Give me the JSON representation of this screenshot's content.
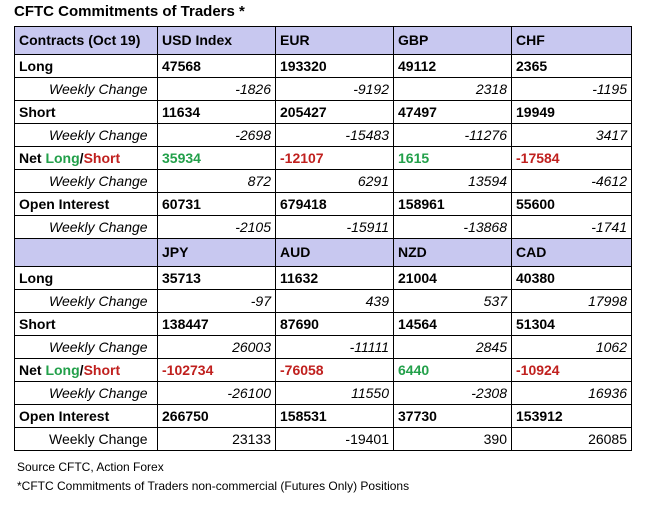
{
  "title": "CFTC Commitments of Traders *",
  "colors": {
    "header_bg": "#c8c8f0",
    "positive": "#22a04a",
    "negative": "#c0201e"
  },
  "labels": {
    "long": "Long",
    "short": "Short",
    "weekly": "Weekly Change",
    "net": "Net ",
    "net_long": "Long",
    "slash": "/",
    "net_short": "Short",
    "oi": "Open Interest"
  },
  "block1": {
    "header": [
      "Contracts (Oct 19)",
      "USD Index",
      "EUR",
      "GBP",
      "CHF"
    ],
    "long": [
      "47568",
      "193320",
      "49112",
      "2365"
    ],
    "long_chg": [
      "-1826",
      "-9192",
      "2318",
      "-1195"
    ],
    "short": [
      "11634",
      "205427",
      "47497",
      "19949"
    ],
    "short_chg": [
      "-2698",
      "-15483",
      "-11276",
      "3417"
    ],
    "net": [
      "35934",
      "-12107",
      "1615",
      "-17584"
    ],
    "net_chg": [
      "872",
      "6291",
      "13594",
      "-4612"
    ],
    "oi": [
      "60731",
      "679418",
      "158961",
      "55600"
    ],
    "oi_chg": [
      "-2105",
      "-15911",
      "-13868",
      "-1741"
    ]
  },
  "block2": {
    "header": [
      "",
      "JPY",
      "AUD",
      "NZD",
      "CAD"
    ],
    "long": [
      "35713",
      "11632",
      "21004",
      "40380"
    ],
    "long_chg": [
      "-97",
      "439",
      "537",
      "17998"
    ],
    "short": [
      "138447",
      "87690",
      "14564",
      "51304"
    ],
    "short_chg": [
      "26003",
      "-11111",
      "2845",
      "1062"
    ],
    "net": [
      "-102734",
      "-76058",
      "6440",
      "-10924"
    ],
    "net_chg": [
      "-26100",
      "11550",
      "-2308",
      "16936"
    ],
    "oi": [
      "266750",
      "158531",
      "37730",
      "153912"
    ],
    "oi_chg": [
      "23133",
      "-19401",
      "390",
      "26085"
    ]
  },
  "footer": {
    "source": "Source CFTC, Action Forex",
    "note": "*CFTC Commitments of Traders non-commercial (Futures Only) Positions"
  }
}
